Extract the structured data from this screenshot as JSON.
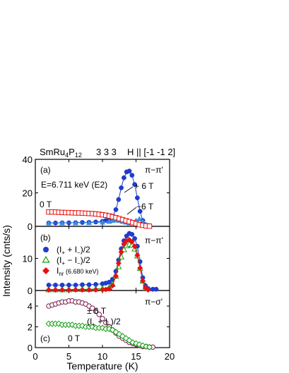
{
  "header": {
    "title": "SmRu",
    "title_sub": "4",
    "title_p": "P",
    "title_p_sub": "12",
    "reflection": "3 3 3",
    "field_dir": "H || [-1 -1 2]"
  },
  "axes": {
    "xlabel": "Temperature  (K)",
    "ylabel": "Intensity  (cnts/s)",
    "xticks": [
      "0",
      "5",
      "10",
      "15",
      "20"
    ]
  },
  "colors": {
    "blue": "#1f3ccc",
    "red": "#e81010",
    "green": "#12a012",
    "purple": "#7a1a4e",
    "lightblue": "#3a8ce0"
  },
  "chart_data": [
    {
      "panel": "(a)",
      "type": "scatter",
      "xlim": [
        0,
        20
      ],
      "ylim": [
        0,
        40
      ],
      "yticks": [
        "0",
        "20",
        "40"
      ],
      "labels": {
        "polarization": "π−π'",
        "energy": "E=6.711 keV (E2)",
        "plus6": "+ 6 T",
        "minus6": "−6 T",
        "zero": "0 T"
      },
      "series": [
        {
          "key": "p6",
          "marker": "circle-filled",
          "color": "#1f3ccc",
          "x": [
            2.0,
            3.0,
            4.0,
            5.0,
            6.0,
            7.0,
            8.0,
            9.0,
            10.0,
            10.5,
            11.0,
            11.5,
            12.0,
            12.4,
            12.8,
            13.2,
            13.6,
            14.0,
            14.4,
            14.8,
            15.2,
            15.6,
            16.0,
            16.4,
            16.8
          ],
          "y": [
            2.0,
            2.0,
            2.1,
            2.1,
            2.2,
            2.3,
            2.4,
            2.6,
            3.0,
            3.5,
            4.3,
            6.0,
            10.0,
            16.0,
            23.0,
            29.0,
            32.5,
            33.0,
            30.5,
            25.0,
            17.0,
            9.0,
            3.5,
            1.0,
            0.3
          ]
        },
        {
          "key": "m6",
          "marker": "triangle-filled",
          "color": "#3a8ce0",
          "x": [
            2.0,
            4.0,
            6.0,
            8.0,
            10.0,
            11.0,
            11.5,
            12.0,
            12.5,
            13.0,
            13.5,
            14.0,
            14.5,
            15.0,
            15.5,
            16.0,
            16.5,
            17.0
          ],
          "y": [
            2.0,
            2.0,
            2.1,
            2.2,
            2.5,
            3.0,
            3.5,
            3.8,
            3.5,
            3.0,
            2.5,
            2.0,
            2.5,
            3.5,
            4.5,
            3.0,
            1.0,
            0.3
          ]
        },
        {
          "key": "z0",
          "marker": "square-open",
          "color": "#e81010",
          "x": [
            2.0,
            2.5,
            3.0,
            3.5,
            4.0,
            4.5,
            5.0,
            5.5,
            6.0,
            6.5,
            7.0,
            7.5,
            8.0,
            8.5,
            9.0,
            9.5,
            10.0,
            10.5,
            11.0,
            11.5,
            12.0,
            12.5,
            13.0,
            13.5,
            14.0,
            14.5,
            15.0,
            15.5,
            16.0,
            16.5,
            17.0
          ],
          "y": [
            8.6,
            8.6,
            8.5,
            8.4,
            8.3,
            8.2,
            8.2,
            8.1,
            8.0,
            8.0,
            7.9,
            7.8,
            7.7,
            7.6,
            7.4,
            7.2,
            6.9,
            6.6,
            6.2,
            5.7,
            5.2,
            4.6,
            4.0,
            3.4,
            2.8,
            2.2,
            1.6,
            1.0,
            0.6,
            0.3,
            0.1
          ]
        }
      ]
    },
    {
      "panel": "(b)",
      "type": "scatter",
      "xlim": [
        0,
        20
      ],
      "ylim": [
        0,
        20
      ],
      "yticks": [
        "0",
        "10"
      ],
      "labels": {
        "polarization": "π−π'"
      },
      "legend": [
        {
          "key": "sum",
          "text": "(I",
          "sub1": "+",
          "mid": " + I",
          "sub2": "−",
          "end": ")/2"
        },
        {
          "key": "diff",
          "text": "(I",
          "sub1": "+",
          "mid": " − I",
          "sub2": "−",
          "end": ")/2"
        },
        {
          "key": "nr",
          "text": "I",
          "sub1": "nr",
          "mid": " (6.680 keV)",
          "sub2": "",
          "end": ""
        }
      ],
      "series": [
        {
          "key": "sum",
          "marker": "circle-filled",
          "color": "#1f3ccc",
          "x": [
            2.0,
            3.0,
            4.0,
            5.0,
            6.0,
            7.0,
            8.0,
            9.0,
            10.0,
            10.5,
            11.0,
            11.5,
            12.0,
            12.4,
            12.8,
            13.2,
            13.6,
            14.0,
            14.4,
            14.8,
            15.2,
            15.6,
            16.0,
            16.4,
            16.8,
            17.5,
            18.0
          ],
          "y": [
            1.7,
            1.7,
            1.7,
            1.7,
            1.7,
            1.8,
            1.8,
            1.9,
            2.1,
            2.3,
            2.6,
            3.5,
            6.0,
            9.5,
            13.0,
            15.5,
            17.0,
            17.8,
            17.5,
            16.2,
            13.8,
            9.0,
            4.0,
            1.5,
            0.6,
            0.4,
            0.4
          ]
        },
        {
          "key": "diff",
          "marker": "triangle-open",
          "color": "#12a012",
          "x": [
            2.0,
            3.0,
            4.0,
            5.0,
            6.0,
            7.0,
            8.0,
            9.0,
            10.0,
            11.0,
            11.5,
            12.0,
            12.4,
            12.8,
            13.2,
            13.6,
            14.0,
            14.4,
            14.8,
            15.2,
            15.6,
            16.0,
            16.4
          ],
          "y": [
            0.3,
            0.3,
            0.3,
            0.3,
            0.4,
            0.4,
            0.4,
            0.5,
            0.6,
            1.0,
            2.0,
            4.5,
            7.5,
            10.5,
            12.8,
            14.0,
            14.5,
            14.2,
            13.0,
            10.8,
            7.0,
            3.0,
            0.8
          ]
        },
        {
          "key": "nr",
          "marker": "diamond-filled",
          "color": "#e81010",
          "x": [
            2.0,
            3.0,
            4.0,
            5.0,
            6.0,
            7.0,
            8.0,
            9.0,
            10.0,
            10.5,
            11.0,
            11.5,
            12.0,
            12.4,
            12.8,
            13.2,
            13.6,
            14.0,
            14.4,
            14.8,
            15.2,
            15.6,
            16.0,
            16.4,
            16.8
          ],
          "y": [
            0.2,
            0.2,
            0.2,
            0.2,
            0.2,
            0.2,
            0.2,
            0.2,
            0.2,
            0.3,
            0.5,
            1.5,
            4.5,
            8.5,
            12.0,
            14.5,
            15.5,
            15.8,
            15.2,
            13.8,
            11.0,
            7.0,
            3.0,
            0.8,
            0.2
          ]
        }
      ]
    },
    {
      "panel": "(c)",
      "type": "scatter",
      "xlim": [
        0,
        20
      ],
      "ylim": [
        0,
        5.5
      ],
      "yticks": [
        "0",
        "2",
        "4"
      ],
      "xticks": [
        "0",
        "5",
        "10",
        "15",
        "20"
      ],
      "labels": {
        "polarization": "π−σ'",
        "pm6": "± 6 T",
        "sum": "(I",
        "sum_sub1": "+",
        "sum_mid": " + I",
        "sum_sub2": "−",
        "sum_end": ")/2",
        "zero": "0 T"
      },
      "series": [
        {
          "key": "sum6",
          "marker": "circle-open",
          "color": "#7a1a4e",
          "x": [
            2.0,
            2.5,
            3.0,
            3.5,
            4.0,
            4.5,
            5.0,
            5.5,
            6.0,
            6.5,
            7.0,
            7.5,
            8.0,
            8.5,
            9.0,
            9.5,
            10.0,
            10.5,
            11.0,
            11.5,
            12.0,
            12.5,
            13.0,
            13.5,
            14.0,
            14.5,
            15.0,
            15.5,
            16.0,
            16.5,
            17.0,
            17.5
          ],
          "y": [
            4.0,
            4.1,
            4.2,
            4.3,
            4.4,
            4.4,
            4.5,
            4.5,
            4.4,
            4.4,
            4.3,
            4.2,
            4.0,
            3.8,
            3.5,
            3.2,
            2.8,
            2.4,
            2.0,
            1.7,
            1.4,
            1.1,
            0.9,
            0.7,
            0.5,
            0.4,
            0.3,
            0.2,
            0.1,
            0.1,
            0.05,
            0.05
          ]
        },
        {
          "key": "zero",
          "marker": "diamond-open",
          "color": "#12a012",
          "x": [
            2.0,
            2.5,
            3.0,
            3.5,
            4.0,
            4.5,
            5.0,
            5.5,
            6.0,
            6.5,
            7.0,
            7.5,
            8.0,
            8.5,
            9.0,
            9.5,
            10.0,
            10.5,
            11.0,
            11.5,
            12.0,
            12.5,
            13.0,
            13.5,
            14.0,
            14.5,
            15.0,
            15.5,
            16.0,
            16.5,
            17.0
          ],
          "y": [
            2.3,
            2.3,
            2.3,
            2.3,
            2.2,
            2.2,
            2.2,
            2.2,
            2.1,
            2.1,
            2.1,
            2.0,
            2.0,
            2.0,
            1.9,
            1.9,
            1.9,
            1.8,
            1.8,
            1.7,
            1.5,
            1.3,
            1.1,
            0.9,
            0.7,
            0.5,
            0.4,
            0.3,
            0.2,
            0.1,
            0.05
          ]
        }
      ]
    }
  ]
}
